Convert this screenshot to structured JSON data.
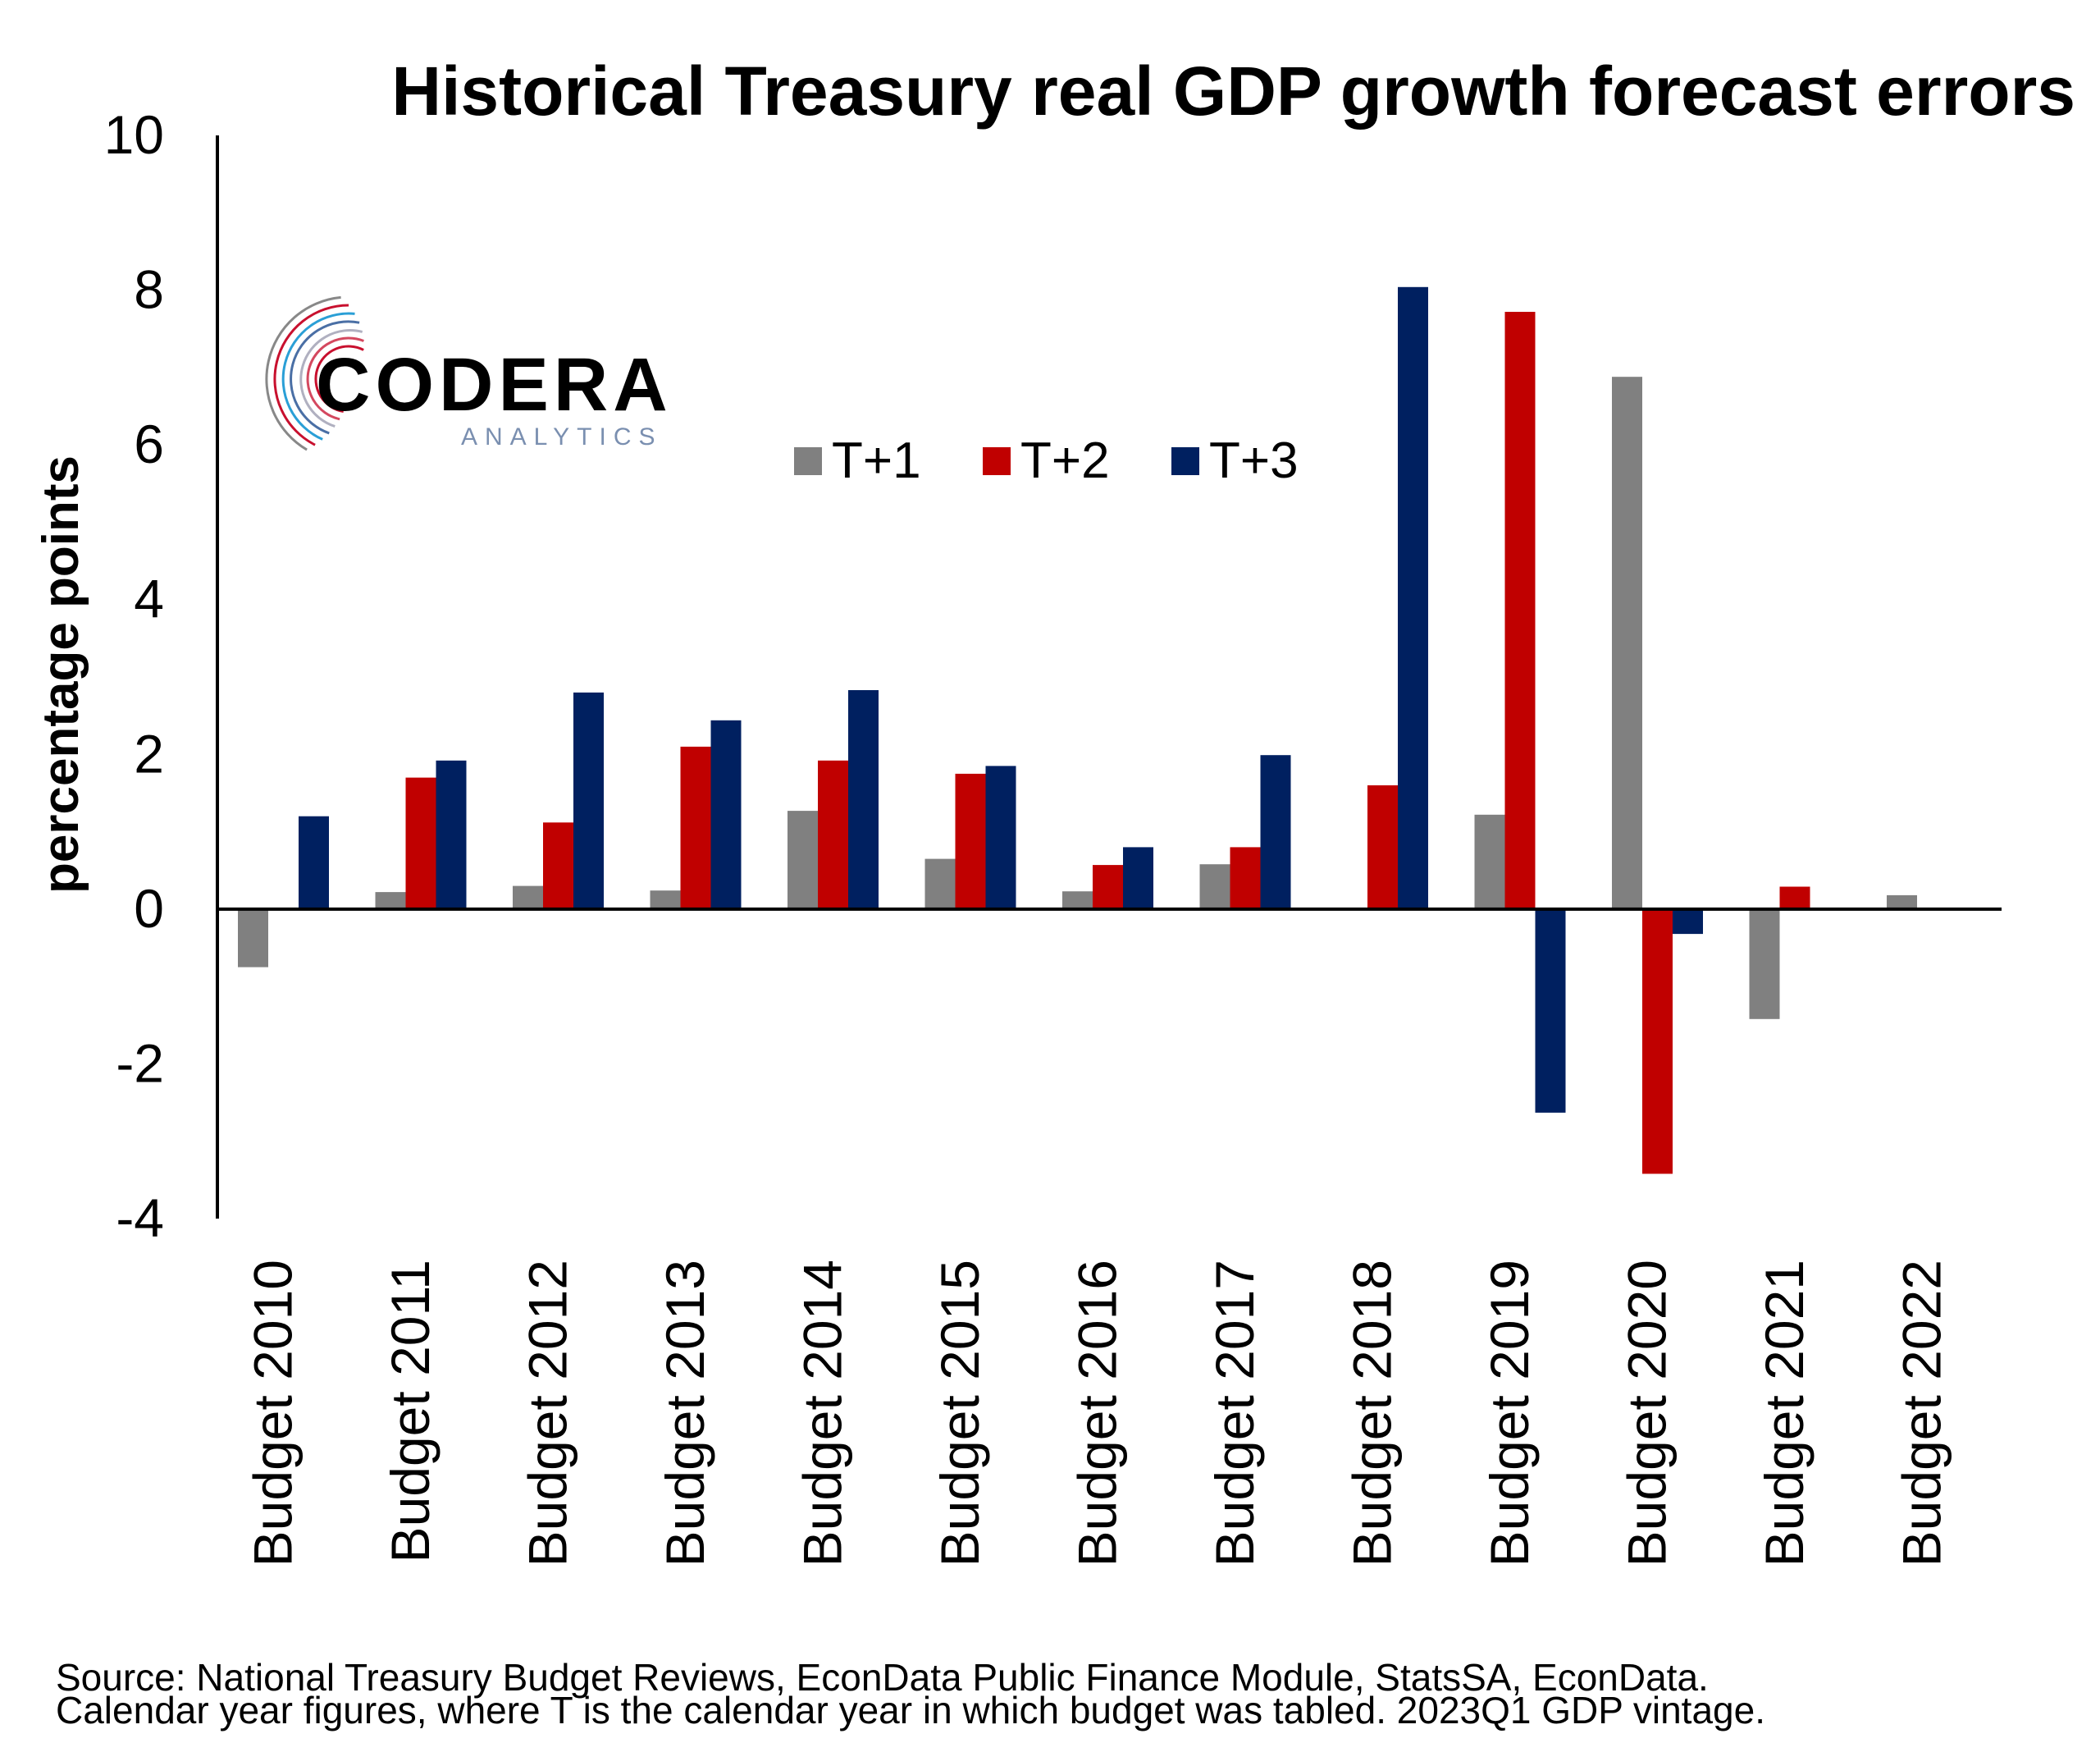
{
  "colors": {
    "t1": "#808080",
    "t2": "#c00000",
    "t3": "#002060",
    "axis": "#000000"
  },
  "logo": {
    "name": "CODERA",
    "sub": "ANALYTICS",
    "icon": "circuit-ring-icon"
  },
  "source": {
    "line1": "Source: National Treasury Budget Reviews, EconData Public Finance Module, StatsSA, EconData.",
    "line2": "Calendar year figures, where T is the calendar year in which budget was tabled. 2023Q1 GDP vintage."
  },
  "chart_data": {
    "type": "bar",
    "title": "Historical Treasury real GDP growth forecast errors",
    "xlabel": "",
    "ylabel": "percentage points",
    "ylim": [
      -4,
      10
    ],
    "yticks": [
      -4,
      -2,
      0,
      2,
      4,
      6,
      8,
      10
    ],
    "grid": false,
    "legend_position": "top-center",
    "categories": [
      "Budget 2010",
      "Budget 2011",
      "Budget 2012",
      "Budget 2013",
      "Budget 2014",
      "Budget 2015",
      "Budget 2016",
      "Budget 2017",
      "Budget 2018",
      "Budget 2019",
      "Budget 2020",
      "Budget 2021",
      "Budget 2022"
    ],
    "series": [
      {
        "name": "T+1",
        "values": [
          -0.75,
          0.22,
          0.3,
          0.24,
          1.27,
          0.65,
          0.23,
          0.58,
          0.0,
          1.22,
          6.88,
          -1.42,
          0.18
        ]
      },
      {
        "name": "T+2",
        "values": [
          0.0,
          1.7,
          1.12,
          2.1,
          1.92,
          1.75,
          0.57,
          0.8,
          1.6,
          7.72,
          -3.42,
          0.29,
          null
        ]
      },
      {
        "name": "T+3",
        "values": [
          1.2,
          1.92,
          2.8,
          2.44,
          2.83,
          1.85,
          0.8,
          1.99,
          8.04,
          -2.63,
          -0.32,
          null,
          null
        ]
      }
    ]
  }
}
